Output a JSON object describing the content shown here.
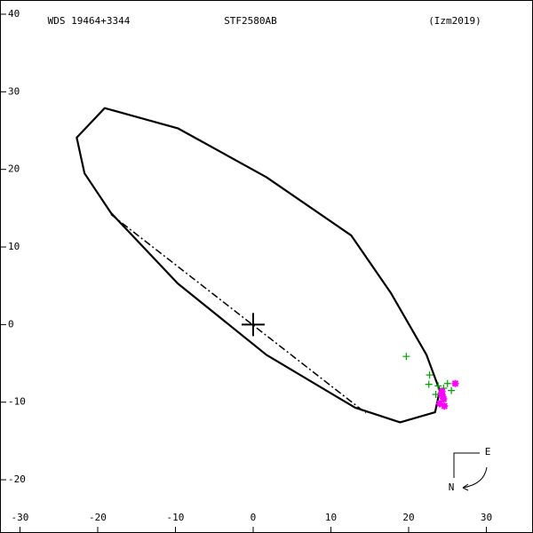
{
  "chart_data": {
    "type": "orbit",
    "title": "STF2580AB",
    "left_label": "WDS 19464+3344",
    "right_label": "(Izm2019)",
    "compass": {
      "east": "E",
      "north": "N"
    },
    "xlim": [
      -32.57,
      36
    ],
    "ylim": [
      -26.86,
      41.83
    ],
    "xticks": [
      -30,
      -20,
      -10,
      0,
      10,
      20,
      30
    ],
    "yticks": [
      -20,
      -10,
      0,
      10,
      20,
      30,
      40
    ],
    "orbit": {
      "color": "#000000",
      "x": [
        -22.7,
        -19.1,
        -9.7,
        1.7,
        12.6,
        17.7,
        22.3,
        24.0,
        23.4,
        18.9,
        13.1,
        1.7,
        -9.7,
        -18.3,
        -21.7
      ],
      "y": [
        24.1,
        27.9,
        25.3,
        19.0,
        11.5,
        4.1,
        -3.9,
        -8.5,
        -11.3,
        -12.6,
        -10.7,
        -3.9,
        5.3,
        14.4,
        19.5
      ]
    },
    "node_line": {
      "color": "#000000",
      "x": [
        -18.3,
        14.5
      ],
      "y": [
        14.2,
        -11.4
      ]
    },
    "series": [
      {
        "color": "#00a000",
        "marker": "plus",
        "x": [
          19.7,
          22.7,
          22.6,
          23.8,
          24.5,
          25.0,
          24.2,
          25.5,
          23.5
        ],
        "y": [
          -4.1,
          -6.5,
          -7.7,
          -7.9,
          -8.2,
          -7.6,
          -8.8,
          -8.5,
          -9.0
        ]
      },
      {
        "color": "#ff00ff",
        "marker": "star",
        "x": [
          24.2,
          24.5,
          24.0,
          24.6,
          24.3,
          26.0,
          24.4
        ],
        "y": [
          -9.0,
          -9.6,
          -10.2,
          -10.5,
          -8.6,
          -7.6,
          -9.3
        ]
      }
    ]
  }
}
